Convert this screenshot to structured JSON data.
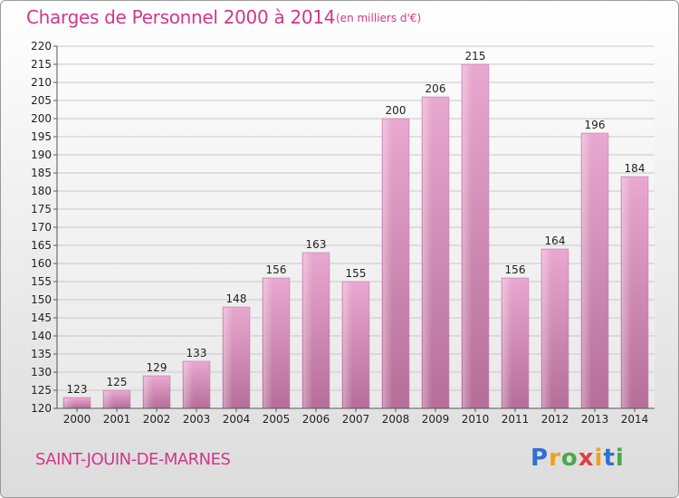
{
  "title": "Charges de Personnel 2000 à 2014",
  "unit_note": "(en milliers d'€)",
  "commune": "SAINT-JOUIN-DE-MARNES",
  "logo": {
    "letters": [
      "P",
      "r",
      "o",
      "x",
      "i",
      "t",
      "i"
    ],
    "colors": [
      "#2f6fd0",
      "#f0a020",
      "#4aa84a",
      "#e04040",
      "#f0a020",
      "#2f6fd0",
      "#4aa84a"
    ]
  },
  "chart_data": {
    "type": "bar",
    "categories": [
      "2000",
      "2001",
      "2002",
      "2003",
      "2004",
      "2005",
      "2006",
      "2007",
      "2008",
      "2009",
      "2010",
      "2011",
      "2012",
      "2013",
      "2014"
    ],
    "values": [
      123,
      125,
      129,
      133,
      148,
      156,
      163,
      155,
      200,
      206,
      215,
      156,
      164,
      196,
      184
    ],
    "ylim": [
      120,
      220
    ],
    "yticks": [
      120,
      125,
      130,
      135,
      140,
      145,
      150,
      155,
      160,
      165,
      170,
      175,
      180,
      185,
      190,
      195,
      200,
      205,
      210,
      215,
      220
    ],
    "grid": true,
    "bar_color": "#d98ab8"
  }
}
